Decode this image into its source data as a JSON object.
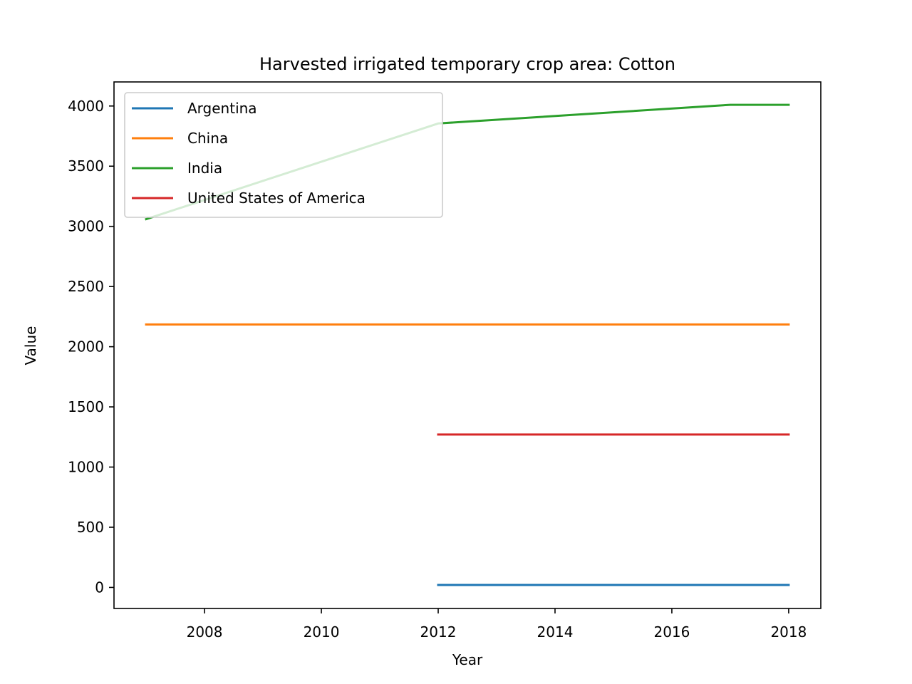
{
  "chart_data": {
    "type": "line",
    "title": "Harvested irrigated temporary crop area: Cotton",
    "xlabel": "Year",
    "ylabel": "Value",
    "xlim": [
      2006.45,
      2018.55
    ],
    "ylim": [
      -175,
      4200
    ],
    "xticks": [
      2008,
      2010,
      2012,
      2014,
      2016,
      2018
    ],
    "yticks": [
      0,
      500,
      1000,
      1500,
      2000,
      2500,
      3000,
      3500,
      4000
    ],
    "legend_location": "upper-left",
    "grid": false,
    "series": [
      {
        "name": "Argentina",
        "color": "#1f77b4",
        "x": [
          2012,
          2018
        ],
        "values": [
          20,
          20
        ]
      },
      {
        "name": "China",
        "color": "#ff7f0e",
        "x": [
          2007,
          2018
        ],
        "values": [
          2185,
          2185
        ]
      },
      {
        "name": "India",
        "color": "#2ca02c",
        "x": [
          2007,
          2012,
          2017,
          2018
        ],
        "values": [
          3060,
          3855,
          4010,
          4010
        ]
      },
      {
        "name": "United States of America",
        "color": "#d62728",
        "x": [
          2012,
          2018
        ],
        "values": [
          1270,
          1270
        ]
      }
    ]
  }
}
